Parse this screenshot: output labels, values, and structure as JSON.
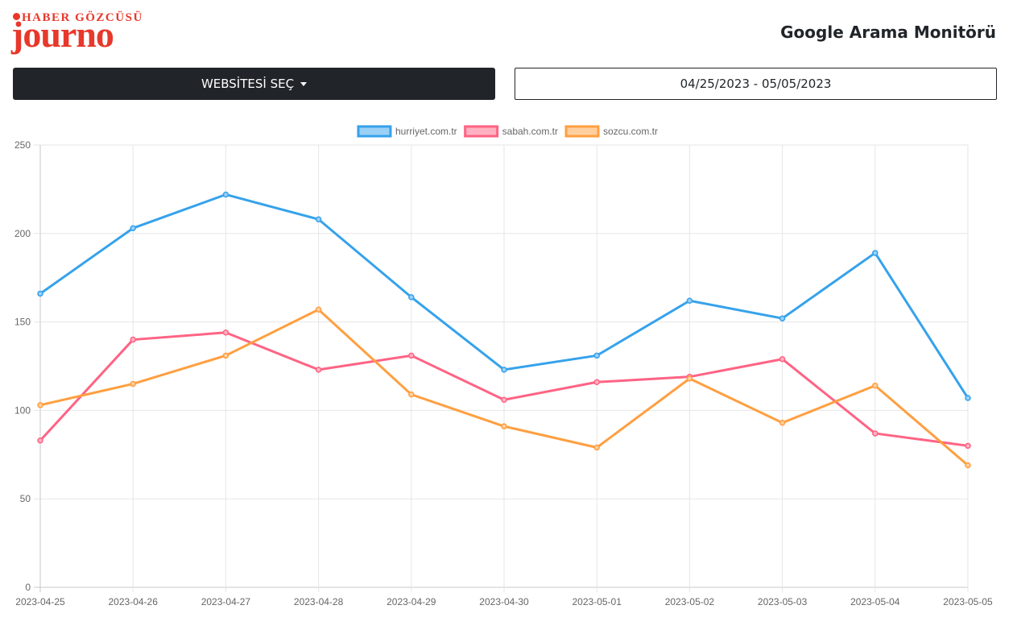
{
  "logo": {
    "tagline": "HABER GÖZCÜSÜ",
    "name": "journo"
  },
  "header": {
    "title": "Google Arama Monitörü"
  },
  "controls": {
    "website_select_label": "WEBSİTESİ SEÇ",
    "date_range_value": "04/25/2023 - 05/05/2023"
  },
  "colors": {
    "accent": "#e8382b",
    "button_bg": "#212529"
  },
  "chart_data": {
    "type": "line",
    "title": "",
    "xlabel": "",
    "ylabel": "",
    "ylim": [
      0,
      250
    ],
    "yticks": [
      0,
      50,
      100,
      150,
      200,
      250
    ],
    "grid": true,
    "legend_position": "top-center",
    "categories": [
      "2023-04-25",
      "2023-04-26",
      "2023-04-27",
      "2023-04-28",
      "2023-04-29",
      "2023-04-30",
      "2023-05-01",
      "2023-05-02",
      "2023-05-03",
      "2023-05-04",
      "2023-05-05"
    ],
    "series": [
      {
        "name": "hurriyet.com.tr",
        "color": "#36a2eb",
        "fill": "#9ad0f5",
        "values": [
          166,
          203,
          222,
          208,
          164,
          123,
          131,
          162,
          152,
          189,
          107
        ]
      },
      {
        "name": "sabah.com.tr",
        "color": "#ff6384",
        "fill": "#ffb1c1",
        "values": [
          83,
          140,
          144,
          123,
          131,
          106,
          116,
          119,
          129,
          87,
          80
        ]
      },
      {
        "name": "sozcu.com.tr",
        "color": "#ff9f40",
        "fill": "#ffcf9f",
        "values": [
          103,
          115,
          131,
          157,
          109,
          91,
          79,
          118,
          93,
          114,
          69
        ]
      }
    ]
  }
}
